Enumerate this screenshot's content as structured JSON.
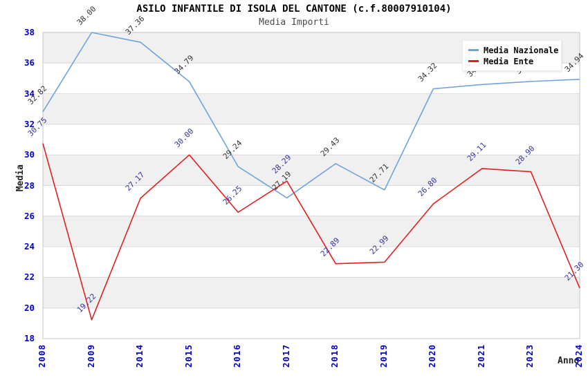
{
  "header": {
    "title": "ASILO INFANTILE DI ISOLA DEL CANTONE (c.f.80007910104)",
    "subtitle": "Media Importi"
  },
  "chart_data": {
    "type": "line",
    "title": "ASILO INFANTILE DI ISOLA DEL CANTONE (c.f.80007910104)",
    "subtitle": "Media Importi",
    "xlabel": "Anno",
    "ylabel": "Media",
    "ylim": [
      18,
      38
    ],
    "yticks": [
      18,
      20,
      22,
      24,
      26,
      28,
      30,
      32,
      34,
      36,
      38
    ],
    "grid": "horizontal-bands-alternating",
    "legend_position": "top-right-inside",
    "categories": [
      "2008",
      "2009",
      "2014",
      "2015",
      "2016",
      "2017",
      "2018",
      "2019",
      "2020",
      "2021",
      "2023",
      "2024"
    ],
    "series": [
      {
        "name": "Media Nazionale",
        "color": "#6fa3db",
        "label_color": "#333333",
        "values": [
          32.82,
          38.0,
          37.36,
          34.79,
          29.24,
          27.19,
          29.43,
          27.71,
          34.32,
          34.6,
          34.8,
          34.94
        ],
        "labels": [
          "32.82",
          "38.00",
          "37.36",
          "34.79",
          "29.24",
          "27.19",
          "29.43",
          "27.71",
          "34.32",
          "34.60",
          "34.80",
          "34.94"
        ]
      },
      {
        "name": "Media Ente",
        "color": "#e02020",
        "label_color": "#333399",
        "values": [
          30.75,
          19.22,
          27.17,
          30.0,
          26.25,
          28.29,
          22.89,
          22.99,
          26.8,
          29.11,
          28.9,
          21.3
        ],
        "labels": [
          "30.75",
          "19.22",
          "27.17",
          "30.00",
          "26.25",
          "28.29",
          "22.89",
          "22.99",
          "26.80",
          "29.11",
          "28.90",
          "21.30"
        ]
      }
    ],
    "style": {
      "tick_label_color": "#0000cc",
      "band_color": "#f0f0f0",
      "gridline_color": "#d9d9d9",
      "plot_border_color": "#c4c4c4",
      "background": "#ffffff"
    }
  },
  "legend": {
    "items": [
      {
        "label": "Media Nazionale"
      },
      {
        "label": "Media Ente"
      }
    ]
  }
}
